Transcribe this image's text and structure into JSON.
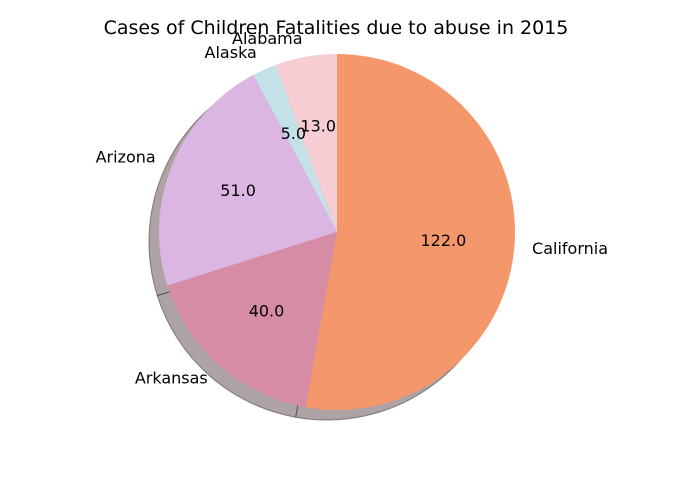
{
  "chart_data": {
    "type": "pie",
    "title": "Cases of Children Fatalities due to abuse in 2015",
    "categories": [
      "Alabama",
      "Alaska",
      "Arizona",
      "Arkansas",
      "California"
    ],
    "values": [
      13.0,
      5.0,
      51.0,
      40.0,
      122.0
    ],
    "value_labels": [
      "13.0",
      "5.0",
      "51.0",
      "40.0",
      "122.0"
    ],
    "colors": [
      "#f7cdd4",
      "#c5e1e8",
      "#dcb6e2",
      "#d68ca4",
      "#f4986c"
    ],
    "shadow": true,
    "start_angle_deg": 90,
    "direction": "counterclockwise"
  }
}
